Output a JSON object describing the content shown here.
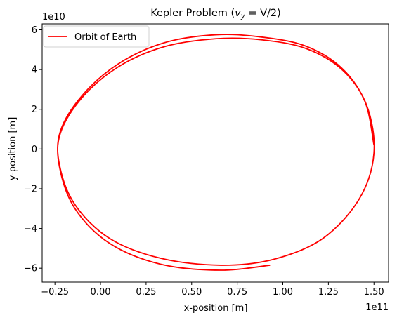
{
  "chart_data": {
    "type": "line",
    "title_prefix": "Kepler Problem (",
    "title_math": "v",
    "title_sub": "y",
    "title_suffix": " = V/2)",
    "xlabel": "x-position [m]",
    "ylabel": "y-position [m]",
    "x_offset_label": "1e11",
    "y_offset_label": "1e10",
    "xlim": [
      -32000000000.0,
      158000000000.0
    ],
    "ylim": [
      -67000000000.0,
      63000000000.0
    ],
    "x_ticks": [
      -25000000000.0,
      0,
      25000000000.0,
      50000000000.0,
      75000000000.0,
      100000000000.0,
      125000000000.0,
      150000000000.0
    ],
    "x_tick_labels": [
      "−0.25",
      "0.00",
      "0.25",
      "0.50",
      "0.75",
      "1.00",
      "1.25",
      "1.50"
    ],
    "y_ticks": [
      -60000000000.0,
      -40000000000.0,
      -20000000000.0,
      0,
      20000000000.0,
      40000000000.0,
      60000000000.0
    ],
    "y_tick_labels": [
      "−6",
      "−4",
      "−2",
      "0",
      "2",
      "4",
      "6"
    ],
    "grid": false,
    "legend_position": "upper-left",
    "series": [
      {
        "name": "Orbit of Earth",
        "color": "#ff0000",
        "x": [
          150000000000.0,
          145000000000.0,
          132000000000.0,
          112000000000.0,
          87000000000.0,
          63000000000.0,
          35000000000.0,
          10000000000.0,
          -10000000000.0,
          -22000000000.0,
          -22500000000.0,
          -14000000000.0,
          5000000000.0,
          33000000000.0,
          66000000000.0,
          95000000000.0,
          122000000000.0,
          142000000000.0,
          150000000000.0,
          146000000000.0,
          133000000000.0,
          113000000000.0,
          88000000000.0,
          63000000000.0,
          35000000000.0,
          10000000000.0,
          -10000000000.0,
          -22000000000.0,
          -22500000000.0,
          -14000000000.0,
          5000000000.0,
          33000000000.0,
          66000000000.0,
          93000000000.0
        ],
        "y": [
          2000000000.0,
          24000000000.0,
          41000000000.0,
          52000000000.0,
          56500000000.0,
          57500000000.0,
          53500000000.0,
          43000000000.0,
          27000000000.0,
          9000000000.0,
          -8000000000.0,
          -28000000000.0,
          -45000000000.0,
          -55000000000.0,
          -58500000000.0,
          -55500000000.0,
          -45000000000.0,
          -25000000000.0,
          -2000000000.0,
          22000000000.0,
          39500000000.0,
          50500000000.0,
          55000000000.0,
          55500000000.0,
          51500000000.0,
          41500000000.0,
          26000000000.0,
          8000000000.0,
          -9000000000.0,
          -30000000000.0,
          -47500000000.0,
          -58000000000.0,
          -61000000000.0,
          -58500000000.0
        ]
      }
    ]
  }
}
